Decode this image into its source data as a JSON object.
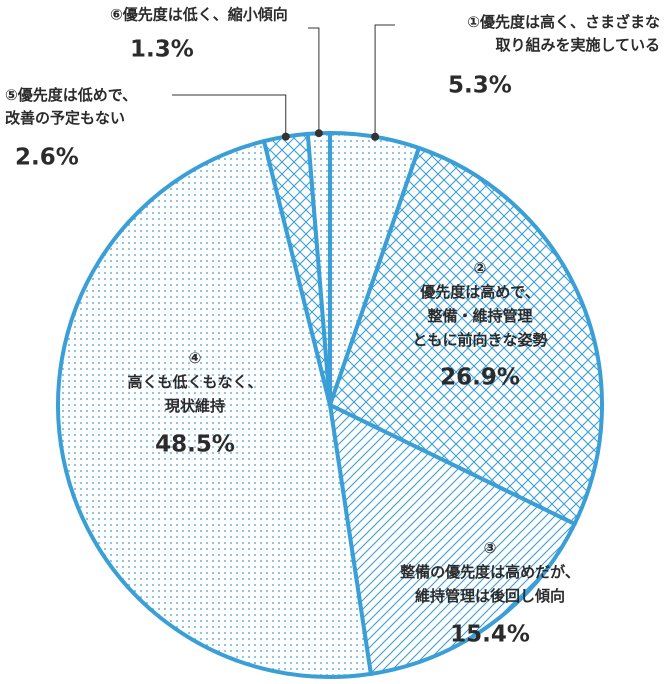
{
  "chart_data": {
    "type": "pie",
    "categories": [
      "①優先度は高く、さまざまな\n取り組みを実施している",
      "②\n優先度は高めで、\n整備・維持管理\nともに前向きな姿勢",
      "③\n整備の優先度は高めだが、\n維持管理は後回し傾向",
      "④\n高くも低くもなく、\n現状維持",
      "⑤優先度は低めで、\n改善の予定もない",
      "⑥優先度は低く、縮小傾向"
    ],
    "values": [
      5.3,
      26.9,
      15.4,
      48.5,
      2.6,
      1.3
    ],
    "value_labels": [
      "5.3%",
      "26.9%",
      "15.4%",
      "48.5%",
      "2.6%",
      "1.3%"
    ],
    "color": "#3a9fd6",
    "patterns": [
      "dots",
      "crosshatch",
      "hatch",
      "dots",
      "crosshatch",
      "dots"
    ]
  }
}
